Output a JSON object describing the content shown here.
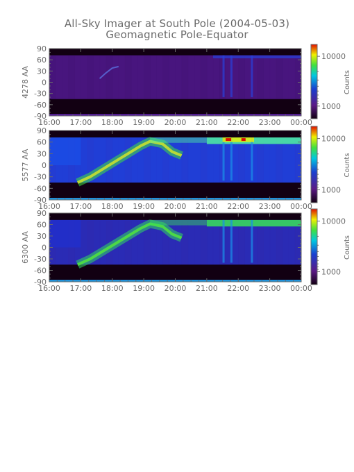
{
  "title": {
    "line1": "All-Sky Imager at South Pole (2004-05-03)",
    "line2": "Geomagnetic Pole-Equator"
  },
  "chart_data": [
    {
      "type": "heatmap",
      "ylabel": "4278 AA",
      "ylim": [
        -90,
        90
      ],
      "yticks": [
        "90",
        "60",
        "30",
        "0",
        "-30",
        "-60",
        "-90"
      ],
      "xticks": [
        "16:00",
        "17:00",
        "18:00",
        "19:00",
        "20:00",
        "21:00",
        "22:00",
        "23:00",
        "00:00"
      ],
      "xlim": [
        "16:00",
        "00:00"
      ],
      "colorbar": {
        "label": "Counts",
        "ticks": [
          "10000",
          "1000"
        ],
        "scale": "log"
      },
      "features": "mostly faint purple background; dark bands above 70 and below -45; faint diagonal arc near 17:30-18:00; bright blue streaks near 21:30 and 22:30"
    },
    {
      "type": "heatmap",
      "ylabel": "5577 AA",
      "ylim": [
        -90,
        90
      ],
      "yticks": [
        "90",
        "60",
        "30",
        "0",
        "-30",
        "-60",
        "-90"
      ],
      "xticks": [
        "16:00",
        "17:00",
        "18:00",
        "19:00",
        "20:00",
        "21:00",
        "22:00",
        "23:00",
        "00:00"
      ],
      "xlim": [
        "16:00",
        "00:00"
      ],
      "colorbar": {
        "label": "Counts",
        "ticks": [
          "10000",
          "1000"
        ],
        "scale": "log"
      },
      "features": "blue background; green-yellow auroral arc rising from -45 at 17:00 to 60 at 19:00; bright band near 60-70 from 21:00 to 00:00 with yellow/red at 21:30-22:30"
    },
    {
      "type": "heatmap",
      "ylabel": "6300 AA",
      "ylim": [
        -90,
        90
      ],
      "yticks": [
        "90",
        "60",
        "30",
        "0",
        "-30",
        "-60",
        "-90"
      ],
      "xticks": [
        "16:00",
        "17:00",
        "18:00",
        "19:00",
        "20:00",
        "21:00",
        "22:00",
        "23:00",
        "00:00"
      ],
      "xlim": [
        "16:00",
        "00:00"
      ],
      "colorbar": {
        "label": "Counts",
        "ticks": [
          "10000",
          "1000"
        ],
        "scale": "log"
      },
      "features": "blue-purple background; green arc rising from -45 at 17:00 to 60 at 19:00; green band near 60-70 from 21:00 to 00:00"
    }
  ],
  "colors": {
    "dark": "#120012",
    "purple": "#5b1a86",
    "blue": "#1a40d0",
    "cyan": "#00c8e0",
    "green": "#40e040",
    "yellow": "#f0f000",
    "red": "#e01000",
    "axis": "#6a6a6a"
  }
}
